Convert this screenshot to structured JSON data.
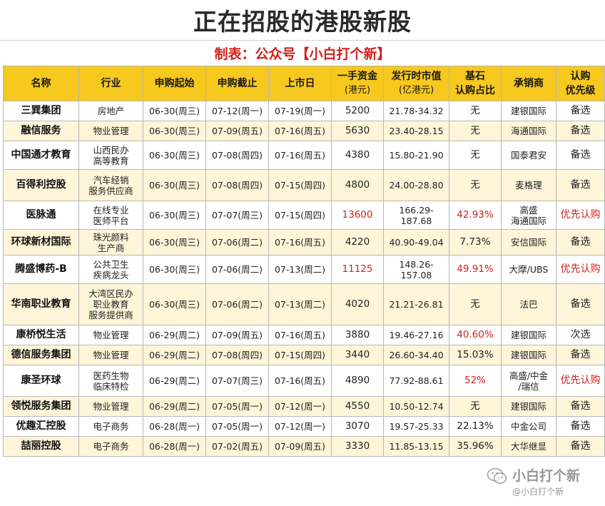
{
  "title": "正在招股的港股新股",
  "subtitle": "制表：公众号【小白打个新】",
  "headers": {
    "name": "名称",
    "industry": "行业",
    "start": "申购起始",
    "end": "申购截止",
    "listing": "上市日",
    "lot_line1": "一手资金",
    "lot_line2": "(港元)",
    "cap_line1": "发行时市值",
    "cap_line2": "(亿港元)",
    "cornerstone_line1": "基石",
    "cornerstone_line2": "认购占比",
    "underwriter": "承销商",
    "priority_line1": "认购",
    "priority_line2": "优先级"
  },
  "rows": [
    {
      "name": "三巽集团",
      "industry": "房地产",
      "start": "06-30(周三)",
      "end": "07-12(周一)",
      "listing": "07-19(周一)",
      "lot": "5200",
      "cap": "21.78-34.32",
      "cornerstone": "无",
      "underwriter": "建银国际",
      "priority": "备选",
      "lot_red": false,
      "corner_red": false,
      "prio_red": false
    },
    {
      "name": "融信服务",
      "industry": "物业管理",
      "start": "06-30(周三)",
      "end": "07-09(周五)",
      "listing": "07-16(周五)",
      "lot": "5630",
      "cap": "23.40-28.15",
      "cornerstone": "无",
      "underwriter": "海通国际",
      "priority": "备选",
      "lot_red": false,
      "corner_red": false,
      "prio_red": false
    },
    {
      "name": "中国通才教育",
      "industry": "山西民办\n高等教育",
      "start": "06-30(周三)",
      "end": "07-08(周四)",
      "listing": "07-16(周五)",
      "lot": "4380",
      "cap": "15.80-21.90",
      "cornerstone": "无",
      "underwriter": "国泰君安",
      "priority": "备选",
      "lot_red": false,
      "corner_red": false,
      "prio_red": false
    },
    {
      "name": "百得利控股",
      "industry": "汽车经销\n服务供应商",
      "start": "06-30(周三)",
      "end": "07-08(周四)",
      "listing": "07-15(周四)",
      "lot": "4800",
      "cap": "24.00-28.80",
      "cornerstone": "无",
      "underwriter": "麦格理",
      "priority": "备选",
      "lot_red": false,
      "corner_red": false,
      "prio_red": false
    },
    {
      "name": "医脉通",
      "industry": "在线专业\n医师平台",
      "start": "06-30(周三)",
      "end": "07-07(周三)",
      "listing": "07-15(周四)",
      "lot": "13600",
      "cap": "166.29-187.68",
      "cornerstone": "42.93%",
      "underwriter": "高盛\n海通国际",
      "priority": "优先认购",
      "lot_red": true,
      "corner_red": true,
      "prio_red": true
    },
    {
      "name": "环球新材国际",
      "industry": "珠光颜料\n生产商",
      "start": "06-30(周三)",
      "end": "07-06(周二)",
      "listing": "07-16(周五)",
      "lot": "4220",
      "cap": "40.90-49.04",
      "cornerstone": "7.73%",
      "underwriter": "安信国际",
      "priority": "备选",
      "lot_red": false,
      "corner_red": false,
      "prio_red": false
    },
    {
      "name": "腾盛博药-B",
      "industry": "公共卫生\n疾病龙头",
      "start": "06-30(周三)",
      "end": "07-06(周二)",
      "listing": "07-13(周二)",
      "lot": "11125",
      "cap": "148.26-157.08",
      "cornerstone": "49.91%",
      "underwriter": "大摩/UBS",
      "priority": "优先认购",
      "lot_red": true,
      "corner_red": true,
      "prio_red": true
    },
    {
      "name": "华南职业教育",
      "industry": "大湾区民办\n职业教育\n服务提供商",
      "start": "06-30(周三)",
      "end": "07-06(周二)",
      "listing": "07-13(周二)",
      "lot": "4020",
      "cap": "21.21-26.81",
      "cornerstone": "无",
      "underwriter": "法巴",
      "priority": "备选",
      "lot_red": false,
      "corner_red": false,
      "prio_red": false
    },
    {
      "name": "康桥悦生活",
      "industry": "物业管理",
      "start": "06-29(周二)",
      "end": "07-09(周五)",
      "listing": "07-16(周五)",
      "lot": "3880",
      "cap": "19.46-27.16",
      "cornerstone": "40.60%",
      "underwriter": "建银国际",
      "priority": "次选",
      "lot_red": false,
      "corner_red": true,
      "prio_red": false
    },
    {
      "name": "德信服务集团",
      "industry": "物业管理",
      "start": "06-29(周二)",
      "end": "07-08(周四)",
      "listing": "07-15(周四)",
      "lot": "3440",
      "cap": "26.60-34.40",
      "cornerstone": "15.03%",
      "underwriter": "建银国际",
      "priority": "备选",
      "lot_red": false,
      "corner_red": false,
      "prio_red": false
    },
    {
      "name": "康圣环球",
      "industry": "医药生物\n临床特检",
      "start": "06-29(周二)",
      "end": "07-07(周三)",
      "listing": "07-16(周五)",
      "lot": "4890",
      "cap": "77.92-88.61",
      "cornerstone": "52%",
      "underwriter": "高盛/中金\n/瑞信",
      "priority": "优先认购",
      "lot_red": false,
      "corner_red": true,
      "prio_red": true
    },
    {
      "name": "领悦服务集团",
      "industry": "物业管理",
      "start": "06-29(周二)",
      "end": "07-05(周一)",
      "listing": "07-12(周一)",
      "lot": "4550",
      "cap": "10.50-12.74",
      "cornerstone": "无",
      "underwriter": "建银国际",
      "priority": "备选",
      "lot_red": false,
      "corner_red": false,
      "prio_red": false
    },
    {
      "name": "优趣汇控股",
      "industry": "电子商务",
      "start": "06-28(周一)",
      "end": "07-05(周一)",
      "listing": "07-12(周一)",
      "lot": "3070",
      "cap": "19.57-25.33",
      "cornerstone": "22.13%",
      "underwriter": "中金公司",
      "priority": "备选",
      "lot_red": false,
      "corner_red": false,
      "prio_red": false
    },
    {
      "name": "喆丽控股",
      "industry": "电子商务",
      "start": "06-28(周一)",
      "end": "07-02(周五)",
      "listing": "07-09(周五)",
      "lot": "3330",
      "cap": "11.85-13.15",
      "cornerstone": "35.96%",
      "underwriter": "大华继显",
      "priority": "备选",
      "lot_red": false,
      "corner_red": false,
      "prio_red": false
    }
  ],
  "watermark": {
    "main": "小白打个新",
    "sub": "@小白打个新",
    "logo_icon": "wechat-icon"
  },
  "colors": {
    "header_bg": "#f7c81e",
    "stripe_bg": "#fff5d9",
    "accent_red": "#d0211c"
  }
}
